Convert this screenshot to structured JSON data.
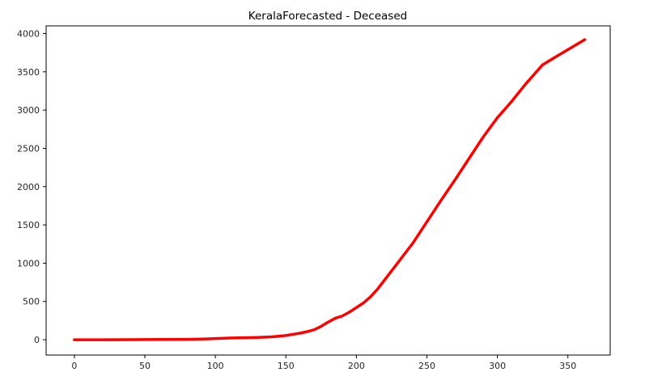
{
  "chart_data": {
    "type": "line",
    "title": "KeralaForecasted - Deceased",
    "xlabel": "",
    "ylabel": "",
    "xlim": [
      -20,
      380
    ],
    "ylim": [
      -200,
      4100
    ],
    "xticks": [
      0,
      50,
      100,
      150,
      200,
      250,
      300,
      350
    ],
    "yticks": [
      0,
      500,
      1000,
      1500,
      2000,
      2500,
      3000,
      3500,
      4000
    ],
    "grid": false,
    "series": [
      {
        "color": "#ff0000",
        "x": [
          0,
          20,
          40,
          60,
          80,
          90,
          100,
          110,
          120,
          130,
          140,
          150,
          155,
          160,
          165,
          170,
          175,
          180,
          185,
          190,
          195,
          200,
          205,
          210,
          215,
          220,
          230,
          240,
          250,
          260,
          270,
          280,
          290,
          300,
          310,
          320,
          332,
          340,
          350,
          362
        ],
        "y": [
          0,
          0,
          1,
          3,
          5,
          8,
          15,
          22,
          26,
          30,
          38,
          55,
          70,
          85,
          105,
          130,
          175,
          230,
          280,
          310,
          360,
          420,
          480,
          560,
          660,
          780,
          1020,
          1260,
          1540,
          1820,
          2090,
          2370,
          2650,
          2900,
          3110,
          3340,
          3590,
          3680,
          3790,
          3920
        ]
      }
    ]
  }
}
